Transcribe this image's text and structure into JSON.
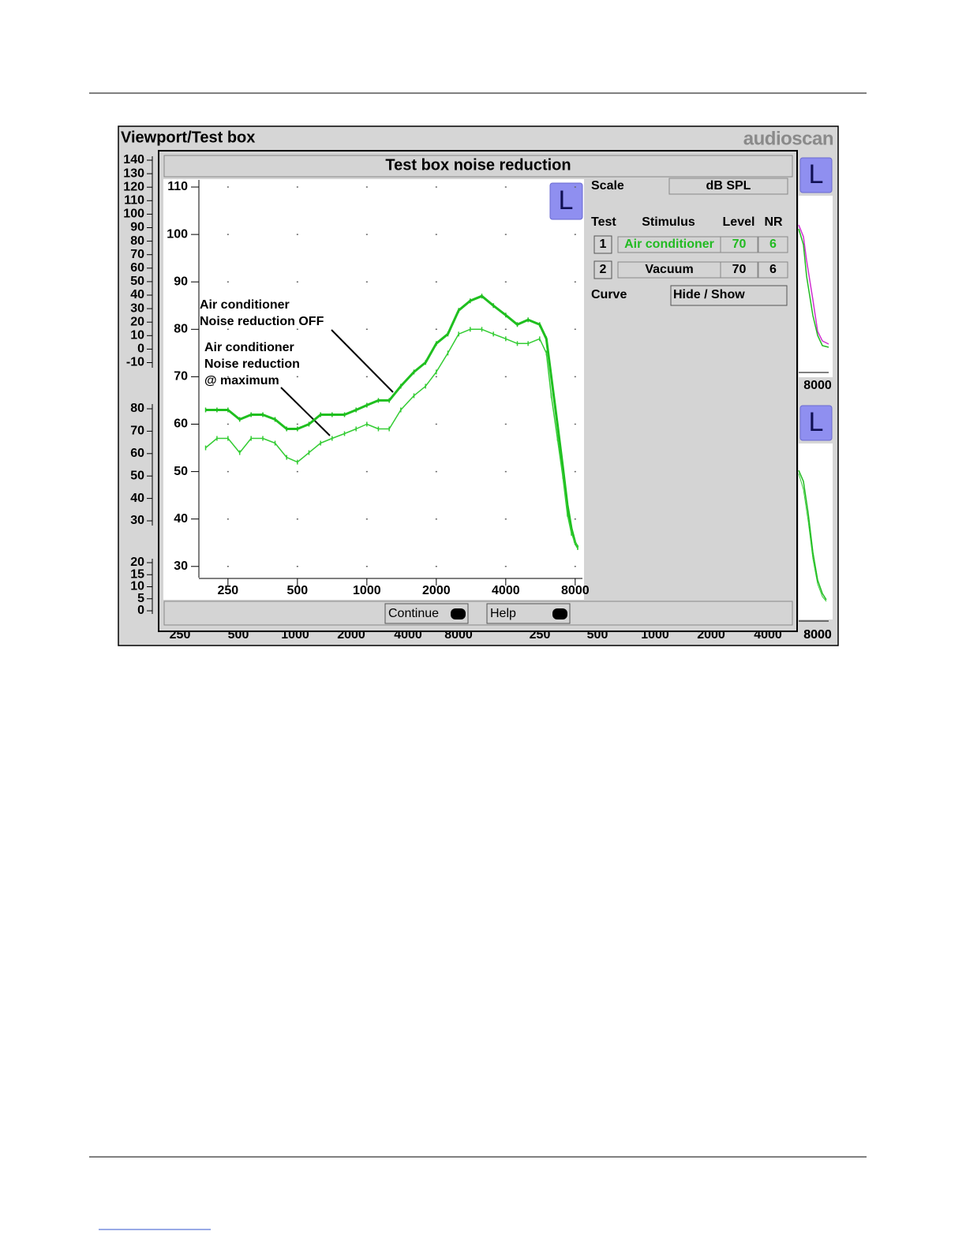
{
  "window": {
    "title": "Viewport/Test box",
    "logo": "audioscan",
    "left_labels_top": [
      "140",
      "130",
      "120",
      "110",
      "100",
      "90",
      "80",
      "70",
      "60",
      "50",
      "40",
      "30",
      "20",
      "10",
      "0",
      "-10"
    ],
    "left_labels_mid": [
      "80",
      "70",
      "60",
      "50",
      "40",
      "30"
    ],
    "left_labels_bottom": [
      "20",
      "15",
      "10",
      "5",
      "0"
    ],
    "bottom_labels": [
      "250",
      "500",
      "1000",
      "2000",
      "4000",
      "8000"
    ],
    "right_labels": [
      "8000",
      "8000"
    ],
    "badges": [
      "L",
      "L"
    ]
  },
  "dialog": {
    "title": "Test box noise reduction",
    "badge": "L",
    "scale_label": "Scale",
    "scale_value": "dB SPL",
    "table": {
      "headers": [
        "Test",
        "Stimulus",
        "Level",
        "NR"
      ],
      "rows": [
        [
          "1",
          "Air conditioner",
          "70",
          "6"
        ],
        [
          "2",
          "Vacuum",
          "70",
          "6"
        ]
      ]
    },
    "curve_label": "Curve",
    "curve_button": "Hide / Show",
    "buttons": [
      "Continue",
      "Help"
    ]
  },
  "chart_data": {
    "type": "line",
    "x_scale": "log",
    "grid": true,
    "xlim": [
      187,
      8600
    ],
    "ylim": [
      28.3,
      111.5
    ],
    "xticks": [
      250,
      500,
      1000,
      2000,
      4000,
      8000
    ],
    "yticks": [
      30,
      40,
      50,
      60,
      70,
      80,
      90,
      100,
      110
    ],
    "x": [
      200,
      224,
      250,
      281,
      315,
      354,
      400,
      449,
      500,
      561,
      630,
      707,
      800,
      898,
      1000,
      1122,
      1250,
      1403,
      1600,
      1796,
      2000,
      2245,
      2500,
      2806,
      3150,
      3536,
      4000,
      4490,
      5000,
      5612,
      6000,
      6300,
      6700,
      7071,
      7400,
      7700,
      8000,
      8200
    ],
    "series": [
      {
        "color": "#1fbf1f",
        "values": [
          63,
          63,
          63,
          61,
          62,
          62,
          61,
          59,
          59,
          60,
          62,
          62,
          62,
          63,
          64,
          65,
          65,
          68,
          71,
          73,
          77,
          79,
          84,
          86,
          87,
          85,
          83,
          81,
          82,
          81,
          78,
          70,
          60,
          51,
          43,
          38,
          35,
          34
        ]
      },
      {
        "color": "#33cc33",
        "values": [
          55,
          57,
          57,
          54,
          57,
          57,
          56,
          53,
          52,
          54,
          56,
          57,
          58,
          59,
          60,
          59,
          59,
          63,
          66,
          68,
          71,
          75,
          79,
          80,
          80,
          79,
          78,
          77,
          77,
          78,
          75,
          66,
          57,
          49,
          41,
          37,
          35,
          34
        ]
      }
    ],
    "annotations": [
      [
        "Air conditioner",
        "Noise reduction OFF"
      ],
      [
        "Air conditioner",
        "Noise reduction",
        "@ maximum"
      ]
    ]
  }
}
